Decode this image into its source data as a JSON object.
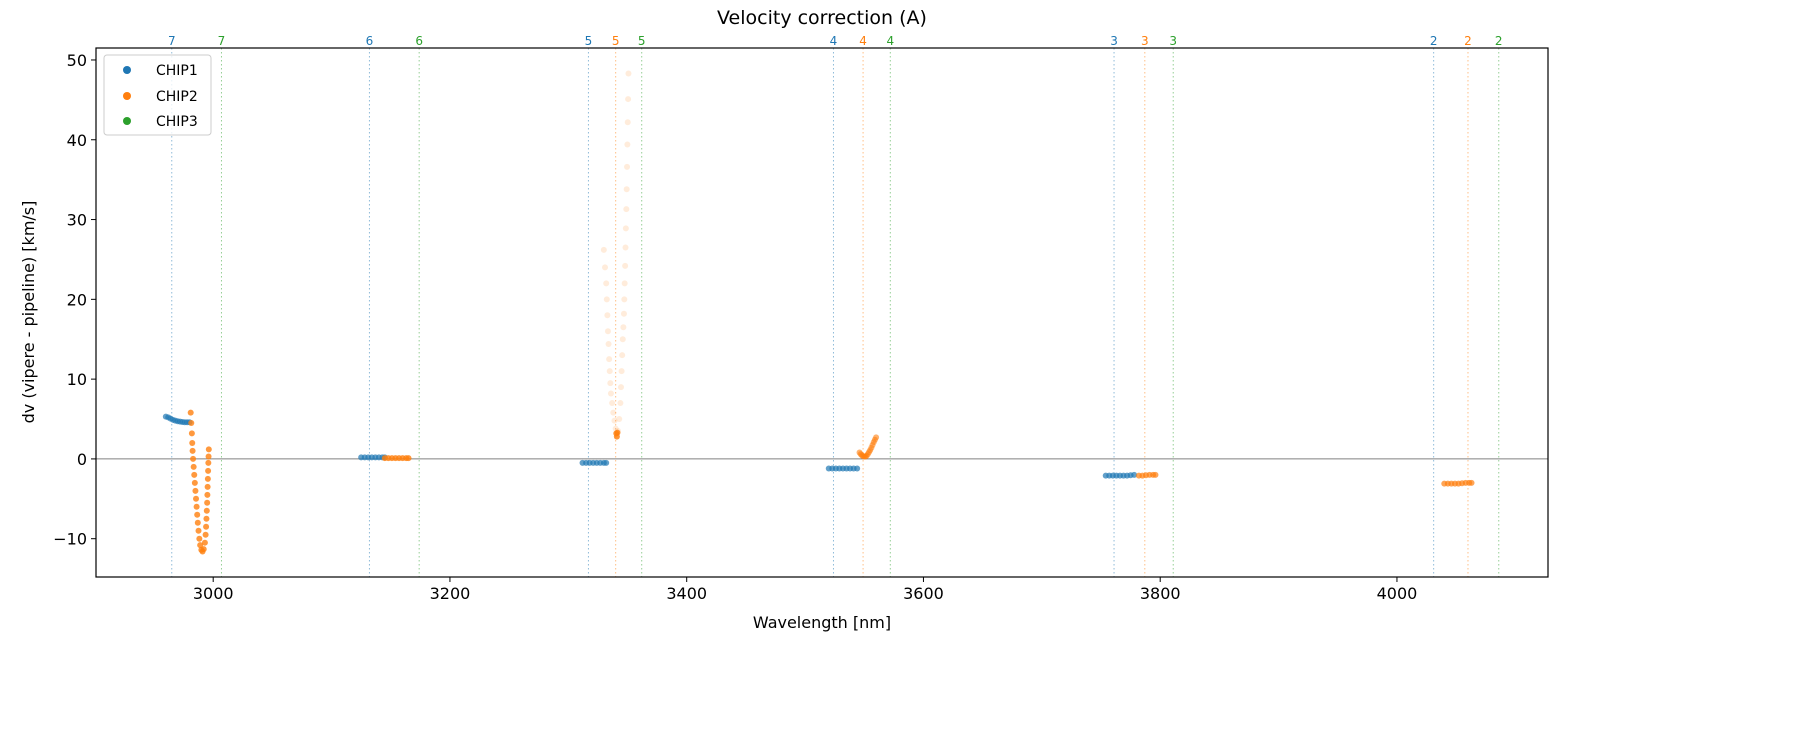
{
  "chart_data": {
    "type": "scatter",
    "title": "Velocity correction (A)",
    "xlabel": "Wavelength [nm]",
    "ylabel": "dv (vipere - pipeline) [km/s]",
    "xlim": [
      2901,
      4127.6
    ],
    "ylim": [
      -14.8,
      51.5
    ],
    "xticks": [
      3000,
      3200,
      3400,
      3600,
      3800,
      4000
    ],
    "yticks": [
      -10,
      0,
      10,
      20,
      30,
      40,
      50
    ],
    "ytick_labels": [
      "−10",
      "0",
      "10",
      "20",
      "30",
      "40",
      "50"
    ],
    "hline": 0,
    "legend": {
      "placement": "upper-left",
      "entries": [
        "CHIP1",
        "CHIP2",
        "CHIP3"
      ]
    },
    "colors": {
      "CHIP1": "#1f77b4",
      "CHIP2": "#ff7f0e",
      "CHIP3": "#2ca02c",
      "hline": "#808080"
    },
    "order_lines": [
      {
        "order": "7",
        "chip": "CHIP1",
        "x": 2965
      },
      {
        "order": "7",
        "chip": "CHIP3",
        "x": 3007
      },
      {
        "order": "6",
        "chip": "CHIP1",
        "x": 3132
      },
      {
        "order": "6",
        "chip": "CHIP3",
        "x": 3174
      },
      {
        "order": "5",
        "chip": "CHIP1",
        "x": 3317
      },
      {
        "order": "5",
        "chip": "CHIP2",
        "x": 3340
      },
      {
        "order": "5",
        "chip": "CHIP3",
        "x": 3362
      },
      {
        "order": "4",
        "chip": "CHIP1",
        "x": 3524
      },
      {
        "order": "4",
        "chip": "CHIP2",
        "x": 3549
      },
      {
        "order": "4",
        "chip": "CHIP3",
        "x": 3572
      },
      {
        "order": "3",
        "chip": "CHIP1",
        "x": 3761
      },
      {
        "order": "3",
        "chip": "CHIP2",
        "x": 3787
      },
      {
        "order": "3",
        "chip": "CHIP3",
        "x": 3811
      },
      {
        "order": "2",
        "chip": "CHIP1",
        "x": 4031
      },
      {
        "order": "2",
        "chip": "CHIP2",
        "x": 4060
      },
      {
        "order": "2",
        "chip": "CHIP3",
        "x": 4086
      }
    ],
    "series": [
      {
        "name": "CHIP1",
        "segments": [
          {
            "order": "7",
            "alpha": 0.7,
            "points": [
              [
                2960,
                5.3
              ],
              [
                2962,
                5.2
              ],
              [
                2964,
                5.05
              ],
              [
                2966,
                4.9
              ],
              [
                2968,
                4.8
              ],
              [
                2970,
                4.72
              ],
              [
                2972,
                4.67
              ],
              [
                2974,
                4.63
              ],
              [
                2976,
                4.6
              ],
              [
                2978,
                4.6
              ],
              [
                2980,
                4.6
              ]
            ]
          },
          {
            "order": "6",
            "alpha": 0.7,
            "points": [
              [
                3125,
                0.2
              ],
              [
                3128,
                0.2
              ],
              [
                3131,
                0.2
              ],
              [
                3134,
                0.2
              ],
              [
                3137,
                0.2
              ],
              [
                3140,
                0.2
              ],
              [
                3143,
                0.2
              ],
              [
                3145,
                0.2
              ]
            ]
          },
          {
            "order": "5",
            "alpha": 0.7,
            "points": [
              [
                3312,
                -0.5
              ],
              [
                3315,
                -0.5
              ],
              [
                3318,
                -0.5
              ],
              [
                3321,
                -0.5
              ],
              [
                3324,
                -0.5
              ],
              [
                3327,
                -0.5
              ],
              [
                3330,
                -0.5
              ],
              [
                3332,
                -0.5
              ]
            ]
          },
          {
            "order": "4",
            "alpha": 0.7,
            "points": [
              [
                3520,
                -1.2
              ],
              [
                3523,
                -1.2
              ],
              [
                3526,
                -1.2
              ],
              [
                3529,
                -1.2
              ],
              [
                3532,
                -1.2
              ],
              [
                3535,
                -1.2
              ],
              [
                3538,
                -1.2
              ],
              [
                3541,
                -1.2
              ],
              [
                3544,
                -1.2
              ]
            ]
          },
          {
            "order": "3",
            "alpha": 0.7,
            "points": [
              [
                3754,
                -2.1
              ],
              [
                3757,
                -2.1
              ],
              [
                3760,
                -2.1
              ],
              [
                3763,
                -2.1
              ],
              [
                3766,
                -2.1
              ],
              [
                3769,
                -2.1
              ],
              [
                3772,
                -2.1
              ],
              [
                3775,
                -2.05
              ],
              [
                3778,
                -2.0
              ]
            ]
          }
        ]
      },
      {
        "name": "CHIP2",
        "segments": [
          {
            "order": "7",
            "alpha": 0.8,
            "points": [
              [
                2981,
                5.8
              ],
              [
                2981.5,
                4.5
              ],
              [
                2982,
                3.2
              ],
              [
                2982.3,
                2
              ],
              [
                2982.6,
                1
              ],
              [
                2983,
                0
              ],
              [
                2983.5,
                -1
              ],
              [
                2984,
                -2
              ],
              [
                2984.5,
                -3
              ],
              [
                2985,
                -4
              ],
              [
                2985.5,
                -5
              ],
              [
                2986,
                -6
              ],
              [
                2986.5,
                -7
              ],
              [
                2987,
                -8
              ],
              [
                2987.6,
                -9
              ],
              [
                2988.3,
                -10
              ],
              [
                2989,
                -10.8
              ],
              [
                2990,
                -11.4
              ],
              [
                2991,
                -11.6
              ],
              [
                2992,
                -11.3
              ],
              [
                2993,
                -10.5
              ],
              [
                2993.6,
                -9.5
              ],
              [
                2994,
                -8.5
              ],
              [
                2994.3,
                -7.5
              ],
              [
                2994.6,
                -6.5
              ],
              [
                2994.9,
                -5.5
              ],
              [
                2995.1,
                -4.5
              ],
              [
                2995.3,
                -3.5
              ],
              [
                2995.5,
                -2.5
              ],
              [
                2995.7,
                -1.5
              ],
              [
                2995.9,
                -0.5
              ],
              [
                2996.1,
                0.3
              ],
              [
                2996.3,
                1.2
              ]
            ]
          },
          {
            "order": "6",
            "alpha": 0.8,
            "points": [
              [
                3145,
                0.1
              ],
              [
                3148,
                0.1
              ],
              [
                3151,
                0.1
              ],
              [
                3154,
                0.1
              ],
              [
                3157,
                0.1
              ],
              [
                3160,
                0.1
              ],
              [
                3163,
                0.1
              ],
              [
                3165,
                0.1
              ]
            ]
          },
          {
            "order": "5",
            "alpha": 0.15,
            "points": [
              [
                3330,
                26.2
              ],
              [
                3331,
                24
              ],
              [
                3332,
                22
              ],
              [
                3332.5,
                20
              ],
              [
                3333,
                18
              ],
              [
                3333.5,
                16
              ],
              [
                3334,
                14.4
              ],
              [
                3334.5,
                12.5
              ],
              [
                3335,
                11
              ],
              [
                3335.5,
                9.5
              ],
              [
                3336,
                8.2
              ],
              [
                3337,
                7
              ],
              [
                3338,
                5.8
              ],
              [
                3339,
                4.8
              ],
              [
                3340,
                3.8
              ],
              [
                3341,
                3
              ],
              [
                3342,
                3.5
              ],
              [
                3343,
                5
              ],
              [
                3344,
                7
              ],
              [
                3344.5,
                9
              ],
              [
                3345,
                11
              ],
              [
                3345.5,
                13
              ],
              [
                3346,
                15
              ],
              [
                3346.5,
                16.5
              ],
              [
                3347,
                18.2
              ],
              [
                3347.3,
                20
              ],
              [
                3347.6,
                22
              ],
              [
                3348,
                24.2
              ],
              [
                3348.3,
                26.5
              ],
              [
                3348.6,
                28.9
              ],
              [
                3349,
                31.3
              ],
              [
                3349.3,
                33.8
              ],
              [
                3349.6,
                36.6
              ],
              [
                3349.9,
                39.4
              ],
              [
                3350.2,
                42.2
              ],
              [
                3350.5,
                45.1
              ],
              [
                3350.8,
                48.3
              ]
            ]
          },
          {
            "order": "5-core",
            "alpha": 0.8,
            "points": [
              [
                3340.5,
                3.2
              ],
              [
                3341,
                2.8
              ],
              [
                3341.5,
                3.3
              ]
            ]
          },
          {
            "order": "4",
            "alpha": 0.6,
            "points": [
              [
                3546,
                0.8
              ],
              [
                3547,
                0.6
              ],
              [
                3548,
                0.45
              ],
              [
                3549,
                0.35
              ],
              [
                3550,
                0.3
              ],
              [
                3551,
                0.3
              ],
              [
                3552,
                0.4
              ],
              [
                3553,
                0.6
              ],
              [
                3554,
                0.85
              ],
              [
                3555,
                1.1
              ],
              [
                3556,
                1.4
              ],
              [
                3557,
                1.75
              ],
              [
                3558,
                2.1
              ],
              [
                3559,
                2.4
              ],
              [
                3560,
                2.7
              ]
            ]
          },
          {
            "order": "3",
            "alpha": 0.7,
            "points": [
              [
                3782,
                -2.1
              ],
              [
                3785,
                -2.1
              ],
              [
                3788,
                -2.05
              ],
              [
                3791,
                -2.0
              ],
              [
                3794,
                -2.0
              ],
              [
                3796,
                -2.0
              ]
            ]
          },
          {
            "order": "2",
            "alpha": 0.7,
            "points": [
              [
                4040,
                -3.1
              ],
              [
                4043,
                -3.1
              ],
              [
                4046,
                -3.1
              ],
              [
                4049,
                -3.1
              ],
              [
                4052,
                -3.1
              ],
              [
                4055,
                -3.05
              ],
              [
                4058,
                -3.0
              ],
              [
                4061,
                -3.0
              ],
              [
                4063,
                -3.0
              ]
            ]
          }
        ]
      },
      {
        "name": "CHIP3",
        "segments": []
      }
    ]
  }
}
